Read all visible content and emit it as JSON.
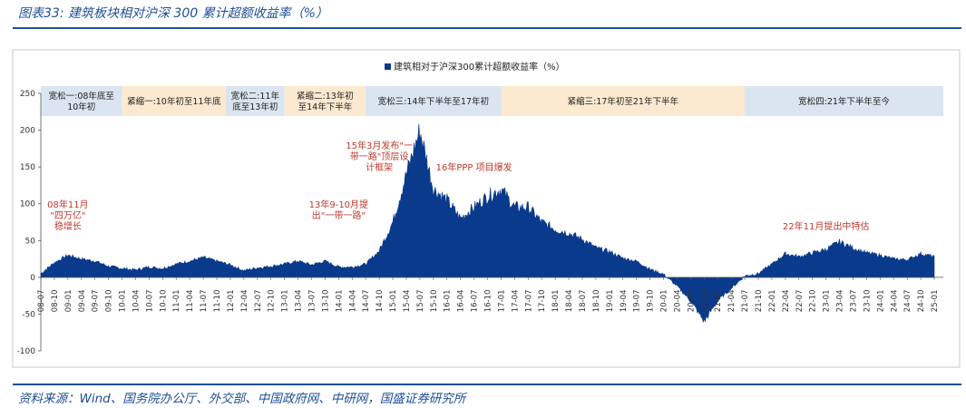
{
  "header": {
    "title": "图表33:  建筑板块相对沪深 300 累计超额收益率（%）"
  },
  "footer": {
    "source": "资料来源：Wind、国务院办公厅、外交部、中国政府网、中研网，国盛证券研究所"
  },
  "colors": {
    "series": "#0a3a8c",
    "band_blue": "#dbe5f1",
    "band_orange": "#fbe9d0",
    "title": "#1f4e96",
    "annotation": "#c0392b"
  },
  "chart_data": {
    "type": "area",
    "legend": {
      "label": "建筑相对于沪深300累计超额收益率（%）",
      "position": "top-center"
    },
    "ylim": [
      -100,
      250
    ],
    "yticks": [
      -100,
      -50,
      0,
      50,
      100,
      150,
      200,
      250
    ],
    "x_tick_labels": [
      "08-07",
      "08-10",
      "09-01",
      "09-04",
      "09-07",
      "09-10",
      "10-01",
      "10-04",
      "10-07",
      "10-10",
      "11-01",
      "11-04",
      "11-07",
      "11-10",
      "12-01",
      "12-04",
      "12-07",
      "12-10",
      "13-01",
      "13-04",
      "13-07",
      "13-10",
      "14-01",
      "14-04",
      "14-07",
      "14-10",
      "15-01",
      "15-04",
      "15-07",
      "15-10",
      "16-01",
      "16-04",
      "16-07",
      "16-10",
      "17-01",
      "17-04",
      "17-07",
      "17-10",
      "18-01",
      "18-04",
      "18-07",
      "18-10",
      "19-01",
      "19-04",
      "19-07",
      "19-10",
      "20-01",
      "20-04",
      "20-07",
      "20-10",
      "21-01",
      "21-04",
      "21-07",
      "21-10",
      "22-01",
      "22-04",
      "22-07",
      "22-10",
      "23-01",
      "23-04",
      "23-07",
      "23-10",
      "24-01",
      "24-04",
      "24-07",
      "24-10",
      "25-01"
    ],
    "series": [
      {
        "x": [
          "08-07",
          "08-10",
          "09-01",
          "09-04",
          "09-07",
          "09-10",
          "10-01",
          "10-04",
          "10-07",
          "10-10",
          "11-01",
          "11-04",
          "11-07",
          "11-10",
          "12-01",
          "12-04",
          "12-07",
          "12-10",
          "13-01",
          "13-04",
          "13-07",
          "13-10",
          "14-01",
          "14-04",
          "14-07",
          "14-10",
          "15-01",
          "15-04",
          "15-07",
          "15-10",
          "16-01",
          "16-04",
          "16-07",
          "16-10",
          "17-01",
          "17-04",
          "17-07",
          "17-10",
          "18-01",
          "18-04",
          "18-07",
          "18-10",
          "19-01",
          "19-04",
          "19-07",
          "19-10",
          "20-01",
          "20-04",
          "20-07",
          "20-10",
          "21-01",
          "21-04",
          "21-07",
          "21-10",
          "22-01",
          "22-04",
          "22-07",
          "22-10",
          "23-01",
          "23-04",
          "23-07",
          "23-10",
          "24-01",
          "24-04",
          "24-07",
          "24-10",
          "25-01"
        ],
        "values": [
          5,
          20,
          30,
          25,
          22,
          15,
          12,
          10,
          14,
          12,
          18,
          22,
          27,
          22,
          17,
          9,
          13,
          15,
          18,
          22,
          17,
          22,
          14,
          14,
          18,
          36,
          75,
          140,
          200,
          120,
          105,
          80,
          95,
          110,
          120,
          95,
          95,
          75,
          65,
          60,
          52,
          40,
          35,
          26,
          22,
          11,
          4,
          -12,
          -32,
          -60,
          -32,
          -15,
          2,
          5,
          18,
          32,
          28,
          33,
          38,
          48,
          40,
          33,
          30,
          25,
          24,
          32,
          28
        ]
      }
    ],
    "bands": [
      {
        "label": [
          "宽松一:08年底至",
          "10年初"
        ],
        "start": "08-07",
        "end": "10-01",
        "color": "blue"
      },
      {
        "label": [
          "紧缩一:10年初至11年底"
        ],
        "start": "10-01",
        "end": "11-12",
        "color": "orange"
      },
      {
        "label": [
          "宽松二:11年",
          "底至13年初"
        ],
        "start": "11-12",
        "end": "13-01",
        "color": "blue"
      },
      {
        "label": [
          "紧缩二:13年初",
          "至14年下半年"
        ],
        "start": "13-01",
        "end": "14-07",
        "color": "orange"
      },
      {
        "label": [
          "宽松三:14年下半年至17年初"
        ],
        "start": "14-07",
        "end": "17-01",
        "color": "blue"
      },
      {
        "label": [
          "紧缩三:17年初至21年下半年"
        ],
        "start": "17-01",
        "end": "21-07",
        "color": "orange"
      },
      {
        "label": [
          "宽松四:21年下半年至今"
        ],
        "start": "21-07",
        "end": "25-03",
        "color": "blue"
      }
    ],
    "annotations": [
      {
        "lines": [
          "08年11月",
          "\"四万亿\"",
          "稳增长"
        ],
        "x": "09-01",
        "y": 95
      },
      {
        "lines": [
          "13年9-10月提",
          "出\"一带一路\""
        ],
        "x": "14-01",
        "y": 95
      },
      {
        "lines": [
          "15年3月发布\"一",
          "带一路\"顶层设",
          "计框架"
        ],
        "x": "14-10",
        "y": 175
      },
      {
        "lines": [
          "16年PPP 项目爆发"
        ],
        "x": "16-07",
        "y": 145
      },
      {
        "lines": [
          "22年11月提出中特估"
        ],
        "x": "23-01",
        "y": 65
      }
    ]
  }
}
